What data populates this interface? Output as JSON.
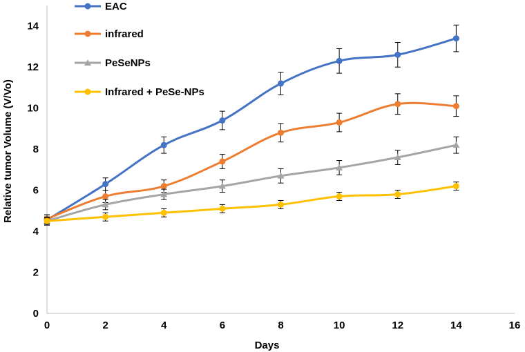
{
  "chart_data": {
    "type": "line",
    "title": "",
    "xlabel": "Days",
    "ylabel": "Relative tumor Volume (V/Vo)",
    "xlim": [
      0,
      16
    ],
    "ylim": [
      0,
      15
    ],
    "x_ticks": [
      0,
      2,
      4,
      6,
      8,
      10,
      12,
      14,
      16
    ],
    "y_ticks": [
      0,
      2,
      4,
      6,
      8,
      10,
      12,
      14
    ],
    "grid": false,
    "legend_position": "top-left",
    "x": [
      0,
      2,
      4,
      6,
      8,
      10,
      12,
      14
    ],
    "series": [
      {
        "name": "EAC",
        "color": "#4472C4",
        "marker": "circle",
        "values": [
          4.55,
          6.3,
          8.2,
          9.4,
          11.2,
          12.3,
          12.6,
          13.4
        ],
        "errors": [
          0.25,
          0.3,
          0.4,
          0.45,
          0.55,
          0.6,
          0.6,
          0.65
        ]
      },
      {
        "name": "infrared",
        "color": "#ED7D31",
        "marker": "circle",
        "values": [
          4.6,
          5.7,
          6.2,
          7.4,
          8.8,
          9.3,
          10.2,
          10.1
        ],
        "errors": [
          0.2,
          0.3,
          0.3,
          0.35,
          0.45,
          0.45,
          0.5,
          0.5
        ]
      },
      {
        "name": "PeSeNPs",
        "color": "#A5A5A5",
        "marker": "triangle",
        "values": [
          4.5,
          5.3,
          5.8,
          6.2,
          6.7,
          7.1,
          7.6,
          8.2
        ],
        "errors": [
          0.2,
          0.25,
          0.25,
          0.3,
          0.35,
          0.35,
          0.35,
          0.4
        ]
      },
      {
        "name": "Infrared + PeSe-NPs",
        "color": "#FFC000",
        "marker": "circle",
        "values": [
          4.5,
          4.7,
          4.9,
          5.1,
          5.3,
          5.7,
          5.8,
          6.2
        ],
        "errors": [
          0.15,
          0.2,
          0.2,
          0.2,
          0.2,
          0.2,
          0.2,
          0.2
        ]
      }
    ]
  }
}
